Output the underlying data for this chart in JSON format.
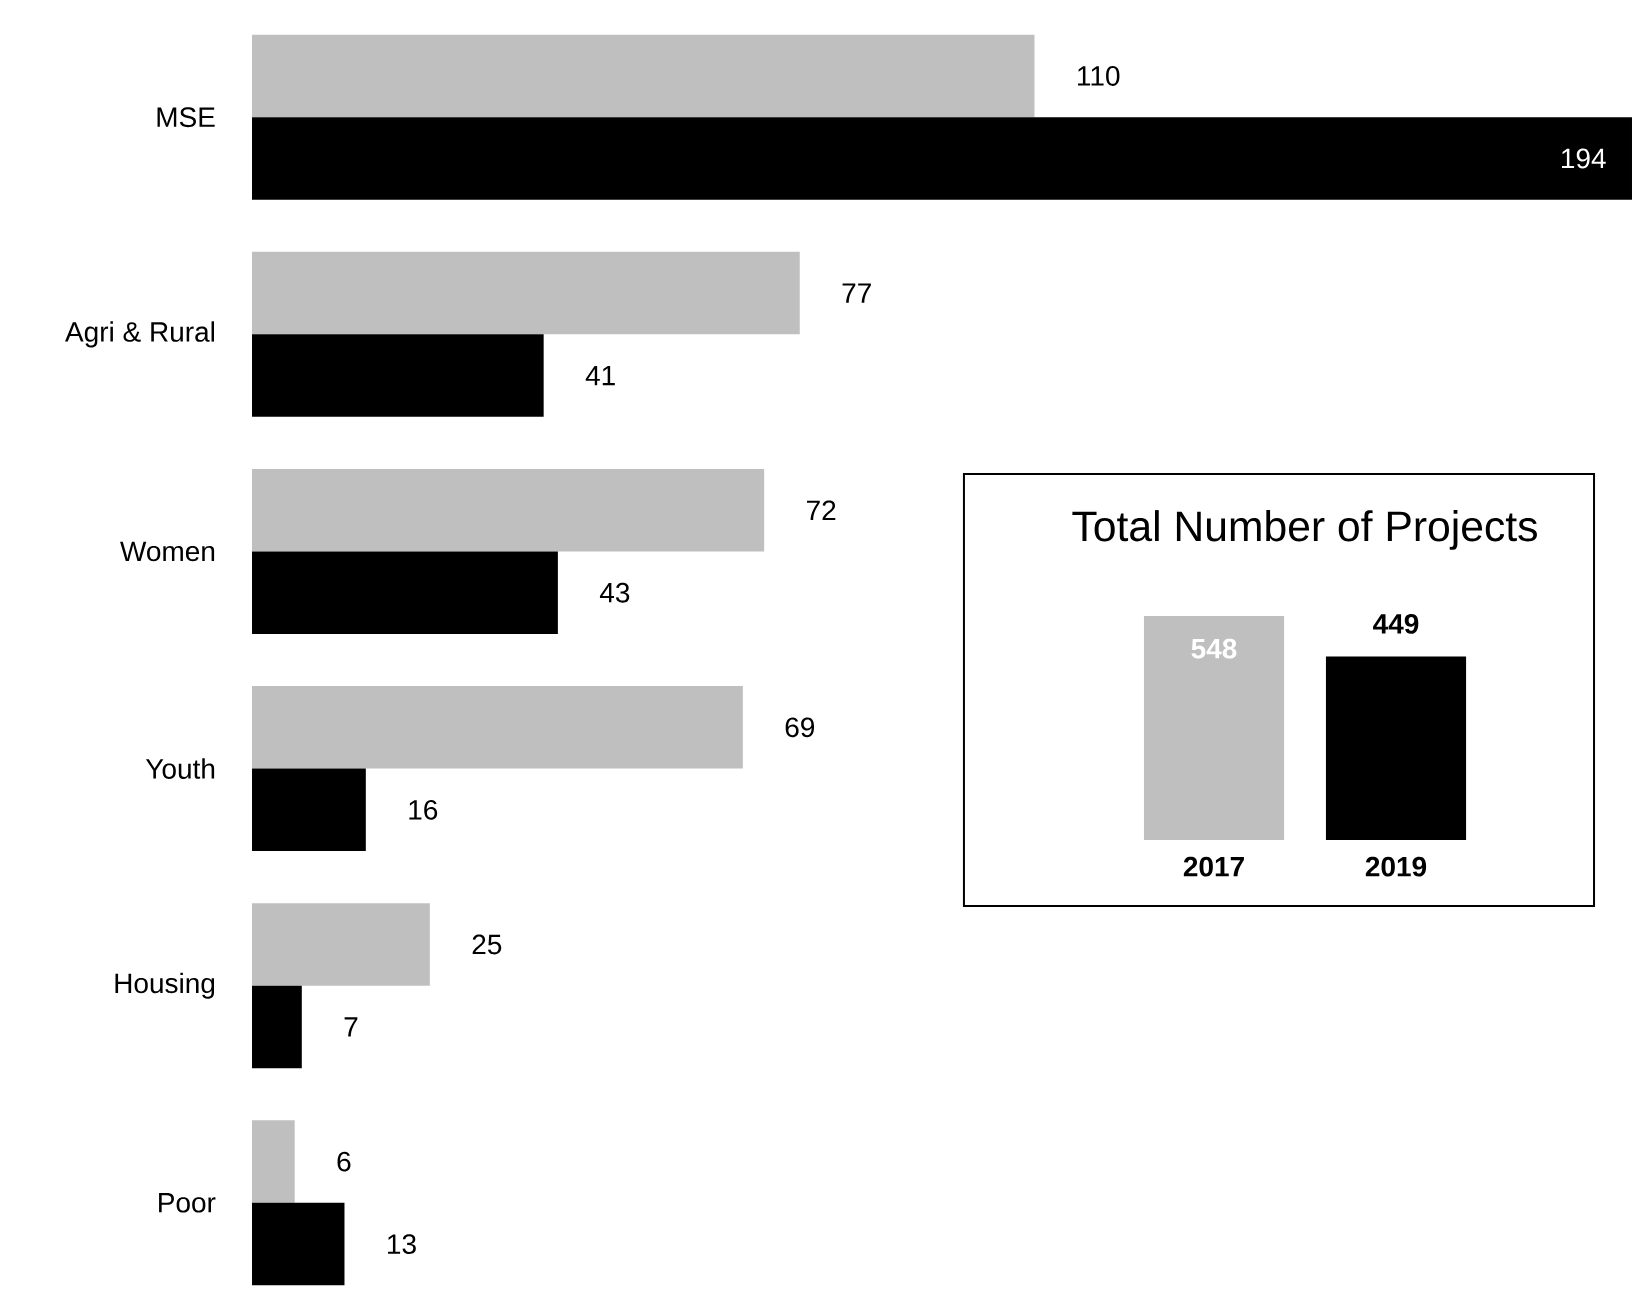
{
  "chart_data": [
    {
      "type": "bar",
      "orientation": "horizontal",
      "categories": [
        "MSE",
        "Agri & Rural",
        "Women",
        "Youth",
        "Housing",
        "Poor"
      ],
      "series": [
        {
          "color": "#bfbfbf",
          "values": [
            110,
            77,
            72,
            69,
            25,
            6
          ]
        },
        {
          "color": "#000000",
          "values": [
            194,
            41,
            43,
            16,
            7,
            13
          ]
        }
      ],
      "data_labels": true
    },
    {
      "type": "bar",
      "title": "Total Number of Projects",
      "categories": [
        "2017",
        "2019"
      ],
      "values": [
        548,
        449
      ],
      "colors": [
        "#bfbfbf",
        "#000000"
      ],
      "data_labels": true
    }
  ]
}
